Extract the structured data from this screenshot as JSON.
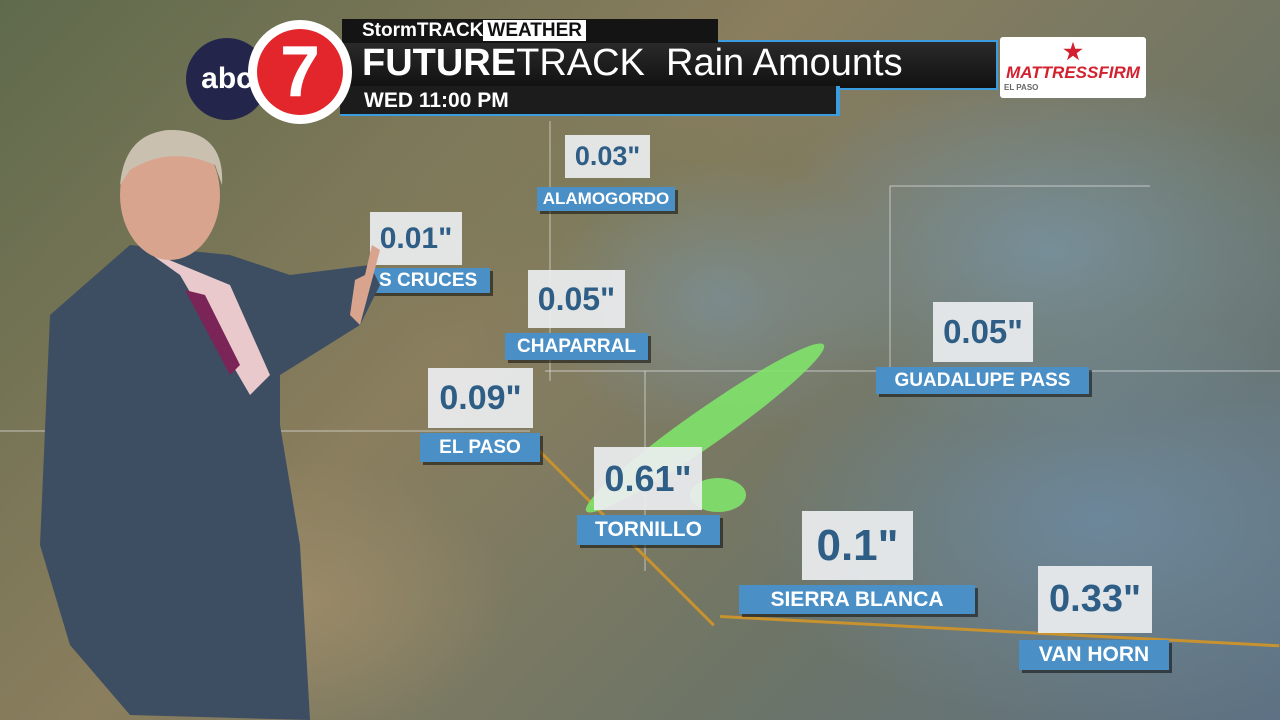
{
  "broadcast": {
    "network_logo": "abc 7",
    "brand": {
      "storm": "StormTRACK",
      "weather": "WEATHER"
    },
    "title_bold": "FUTURE",
    "title_track": "TRACK",
    "title_rest": "Rain Amounts",
    "time": "WED 11:00 PM",
    "sponsor": {
      "name": "MATTRESSFIRM",
      "location": "EL PASO"
    }
  },
  "map": {
    "rain_color": "#7fe36a",
    "label_color": "#4a8fc6",
    "value_color": "#2e5d85",
    "locations": [
      {
        "name": "ALAMOGORDO",
        "value": "0.03\""
      },
      {
        "name": "LAS CRUCES",
        "value": "0.01\""
      },
      {
        "name": "CHAPARRAL",
        "value": "0.05\""
      },
      {
        "name": "EL PASO",
        "value": "0.09\""
      },
      {
        "name": "TORNILLO",
        "value": "0.61\""
      },
      {
        "name": "SIERRA BLANCA",
        "value": "0.1\""
      },
      {
        "name": "GUADALUPE PASS",
        "value": "0.05\""
      },
      {
        "name": "VAN HORN",
        "value": "0.33\""
      }
    ]
  }
}
